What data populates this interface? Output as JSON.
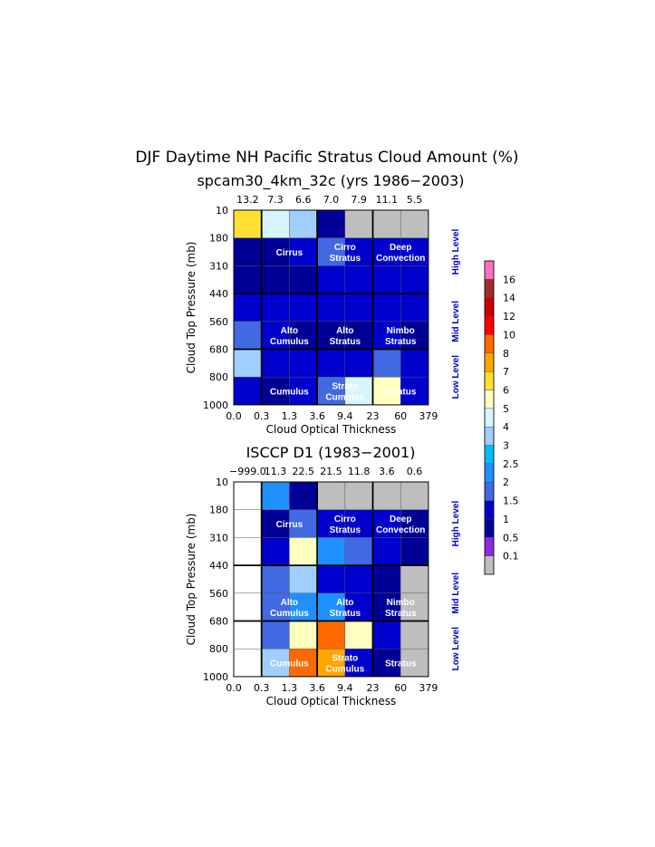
{
  "figure": {
    "title": "DJF Daytime NH Pacific Stratus Cloud Amount (%)"
  },
  "colorbar": {
    "labels": [
      "0.1",
      "0.5",
      "1",
      "1.5",
      "2",
      "2.5",
      "3",
      "4",
      "5",
      "6",
      "7",
      "8",
      "10",
      "12",
      "14",
      "16"
    ],
    "colors": [
      "#bebebe",
      "#8a2be2",
      "#000096",
      "#0000cd",
      "#4169e1",
      "#1e90ff",
      "#00bfff",
      "#a0cfff",
      "#d8f4ff",
      "#ffffc0",
      "#ffe033",
      "#ffa500",
      "#ff6a00",
      "#ff0000",
      "#cc0000",
      "#a52a2a",
      "#ff70c0"
    ]
  },
  "chart_data": [
    {
      "type": "heatmap",
      "title": "spcam30_4km_32c (yrs 1986−2003)",
      "xlabel": "Cloud Optical Thickness",
      "ylabel": "Cloud Top Pressure (mb)",
      "x_tick_labels": [
        "0.0",
        "0.3",
        "1.3",
        "3.6",
        "9.4",
        "23",
        "60",
        "379"
      ],
      "y_tick_labels": [
        "10",
        "180",
        "310",
        "440",
        "560",
        "680",
        "800",
        "1000"
      ],
      "column_totals": [
        "13.2",
        "7.3",
        "6.6",
        "7.0",
        "7.9",
        "11.1",
        "5.5"
      ],
      "value_bins": "rows top-to-bottom (pressure bins 10-180 ... 800-1000), columns by optical thickness bin; values are colorbar bin lower bounds",
      "values": [
        [
          6,
          4,
          3,
          0.5,
          0,
          0,
          0
        ],
        [
          0.5,
          0.5,
          1,
          1.5,
          1,
          1,
          1
        ],
        [
          0.5,
          0.5,
          0.5,
          1,
          1,
          1,
          1
        ],
        [
          1,
          1,
          1,
          1,
          1,
          1,
          1
        ],
        [
          1.5,
          1,
          0.5,
          0.5,
          0.5,
          1,
          0.5
        ],
        [
          3,
          1,
          1,
          1,
          1,
          1.5,
          1
        ],
        [
          1,
          0.5,
          1,
          1.5,
          4,
          5,
          1
        ]
      ],
      "region_labels": [
        {
          "text": [
            "Cirrus"
          ],
          "col": 2,
          "row": 1
        },
        {
          "text": [
            "Cirro",
            "Stratus"
          ],
          "col": 4,
          "row": 1
        },
        {
          "text": [
            "Deep",
            "Convection"
          ],
          "col": 6,
          "row": 1
        },
        {
          "text": [
            "Alto",
            "Cumulus"
          ],
          "col": 2,
          "row": 4
        },
        {
          "text": [
            "Alto",
            "Stratus"
          ],
          "col": 4,
          "row": 4
        },
        {
          "text": [
            "Nimbo",
            "Stratus"
          ],
          "col": 6,
          "row": 4
        },
        {
          "text": [
            "Cumulus"
          ],
          "col": 2,
          "row": 6
        },
        {
          "text": [
            "Strato",
            "Cumulus"
          ],
          "col": 4,
          "row": 6
        },
        {
          "text": [
            "Stratus"
          ],
          "col": 6,
          "row": 6
        }
      ],
      "level_labels": [
        "High Level",
        "Mid Level",
        "Low Level"
      ]
    },
    {
      "type": "heatmap",
      "title": "ISCCP D1 (1983−2001)",
      "xlabel": "Cloud Optical Thickness",
      "ylabel": "Cloud Top Pressure (mb)",
      "x_tick_labels": [
        "0.0",
        "0.3",
        "1.3",
        "3.6",
        "9.4",
        "23",
        "60",
        "379"
      ],
      "y_tick_labels": [
        "10",
        "180",
        "310",
        "440",
        "560",
        "680",
        "800",
        "1000"
      ],
      "column_totals": [
        "−999.0",
        "11.3",
        "22.5",
        "21.5",
        "11.8",
        "3.6",
        "0.6"
      ],
      "value_bins": "rows top-to-bottom, columns by optical thickness bin; null = no data (white)",
      "values": [
        [
          null,
          2,
          0.5,
          0,
          0,
          0,
          0
        ],
        [
          null,
          0.5,
          1.5,
          1,
          1,
          1,
          0.5
        ],
        [
          null,
          1,
          5,
          2,
          1.5,
          1,
          0.5
        ],
        [
          null,
          1.5,
          3,
          1,
          1,
          0.5,
          0
        ],
        [
          null,
          1.5,
          2,
          2,
          1,
          0.5,
          0
        ],
        [
          null,
          1.5,
          5,
          8,
          5,
          1,
          0
        ],
        [
          null,
          3,
          8,
          7,
          1,
          0.5,
          0
        ]
      ],
      "region_labels": [
        {
          "text": [
            "Cirrus"
          ],
          "col": 2,
          "row": 1
        },
        {
          "text": [
            "Cirro",
            "Stratus"
          ],
          "col": 4,
          "row": 1
        },
        {
          "text": [
            "Deep",
            "Convection"
          ],
          "col": 6,
          "row": 1
        },
        {
          "text": [
            "Alto",
            "Cumulus"
          ],
          "col": 2,
          "row": 4
        },
        {
          "text": [
            "Alto",
            "Stratus"
          ],
          "col": 4,
          "row": 4
        },
        {
          "text": [
            "Nimbo",
            "Stratus"
          ],
          "col": 6,
          "row": 4
        },
        {
          "text": [
            "Cumulus"
          ],
          "col": 2,
          "row": 6
        },
        {
          "text": [
            "Strato",
            "Cumulus"
          ],
          "col": 4,
          "row": 6
        },
        {
          "text": [
            "Stratus"
          ],
          "col": 6,
          "row": 6
        }
      ],
      "level_labels": [
        "High Level",
        "Mid Level",
        "Low Level"
      ]
    }
  ]
}
